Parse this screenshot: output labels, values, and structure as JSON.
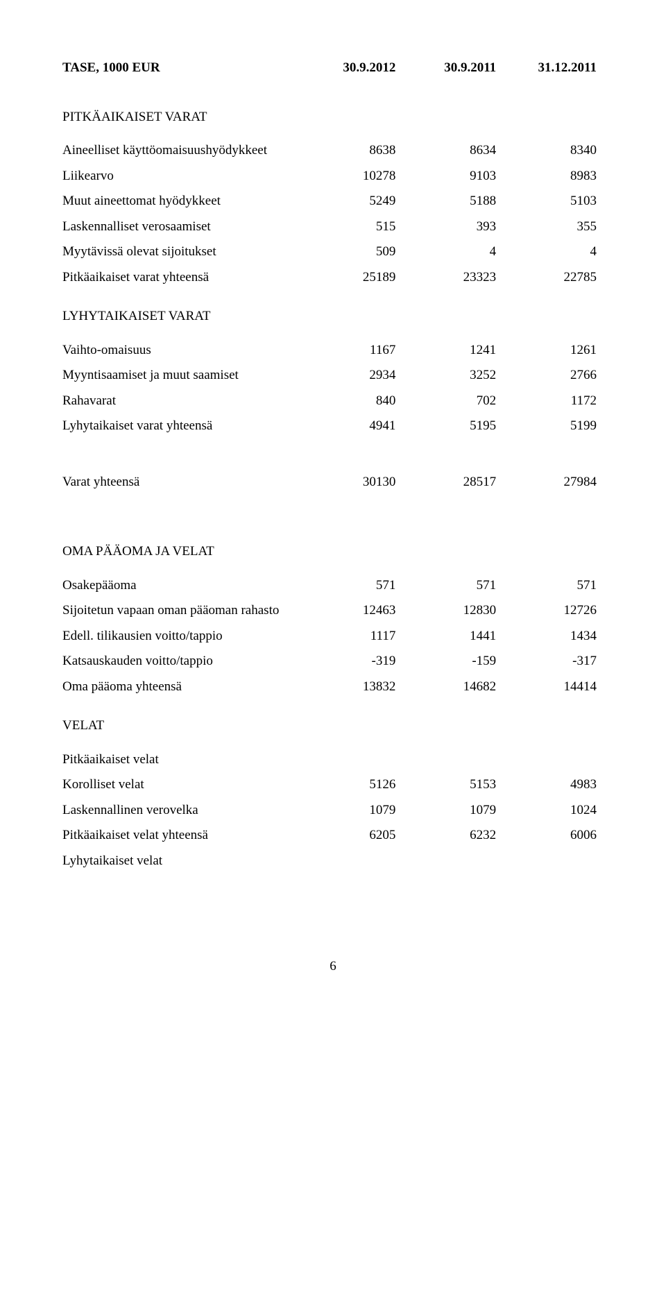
{
  "header": {
    "title": "TASE, 1000 EUR",
    "col1": "30.9.2012",
    "col2": "30.9.2011",
    "col3": "31.12.2011"
  },
  "sections": {
    "pitkavarat_title": "PITKÄAIKAISET VARAT",
    "lyhytvarat_title": "LYHYTAIKAISET VARAT",
    "oma_paa_title": "OMA PÄÄOMA JA VELAT",
    "velat_title": "VELAT",
    "pitka_velat_title": "Pitkäaikaiset velat",
    "lyhyt_velat_title": "Lyhytaikaiset velat"
  },
  "rows": {
    "aineelliset": {
      "label": "Aineelliset käyttöomaisuushyödykkeet",
      "v1": "8638",
      "v2": "8634",
      "v3": "8340"
    },
    "liikearvo": {
      "label": "Liikearvo",
      "v1": "10278",
      "v2": "9103",
      "v3": "8983"
    },
    "muut_aineet": {
      "label": "Muut aineettomat hyödykkeet",
      "v1": "5249",
      "v2": "5188",
      "v3": "5103"
    },
    "lask_vero": {
      "label": "Laskennalliset verosaamiset",
      "v1": "515",
      "v2": "393",
      "v3": "355"
    },
    "myytavissa": {
      "label": "Myytävissä olevat sijoitukset",
      "v1": "509",
      "v2": "4",
      "v3": "4"
    },
    "pitka_yht": {
      "label": "Pitkäaikaiset varat yhteensä",
      "v1": "25189",
      "v2": "23323",
      "v3": "22785"
    },
    "vaihto": {
      "label": "Vaihto-omaisuus",
      "v1": "1167",
      "v2": "1241",
      "v3": "1261"
    },
    "myyntisaam": {
      "label": "Myyntisaamiset ja muut saamiset",
      "v1": "2934",
      "v2": "3252",
      "v3": "2766"
    },
    "rahavarat": {
      "label": "Rahavarat",
      "v1": "840",
      "v2": "702",
      "v3": "1172"
    },
    "lyhyt_yht": {
      "label": "Lyhytaikaiset varat yhteensä",
      "v1": "4941",
      "v2": "5195",
      "v3": "5199"
    },
    "varat_yht": {
      "label": "Varat yhteensä",
      "v1": "30130",
      "v2": "28517",
      "v3": "27984"
    },
    "osakepaa": {
      "label": "Osakepääoma",
      "v1": "571",
      "v2": "571",
      "v3": "571"
    },
    "sijoitetun": {
      "label": "Sijoitetun vapaan oman pääoman rahasto",
      "v1": "12463",
      "v2": "12830",
      "v3": "12726"
    },
    "edell": {
      "label": "Edell. tilikausien voitto/tappio",
      "v1": "1117",
      "v2": "1441",
      "v3": "1434"
    },
    "katsaus": {
      "label": "Katsauskauden voitto/tappio",
      "v1": "-319",
      "v2": "-159",
      "v3": "-317"
    },
    "oma_yht": {
      "label": "Oma pääoma yhteensä",
      "v1": "13832",
      "v2": "14682",
      "v3": "14414"
    },
    "korolliset": {
      "label": "Korolliset velat",
      "v1": "5126",
      "v2": "5153",
      "v3": "4983"
    },
    "lask_verovelka": {
      "label": "Laskennallinen verovelka",
      "v1": "1079",
      "v2": "1079",
      "v3": "1024"
    },
    "pitka_velat_yht": {
      "label": "Pitkäaikaiset velat yhteensä",
      "v1": "6205",
      "v2": "6232",
      "v3": "6006"
    }
  },
  "page_number": "6"
}
